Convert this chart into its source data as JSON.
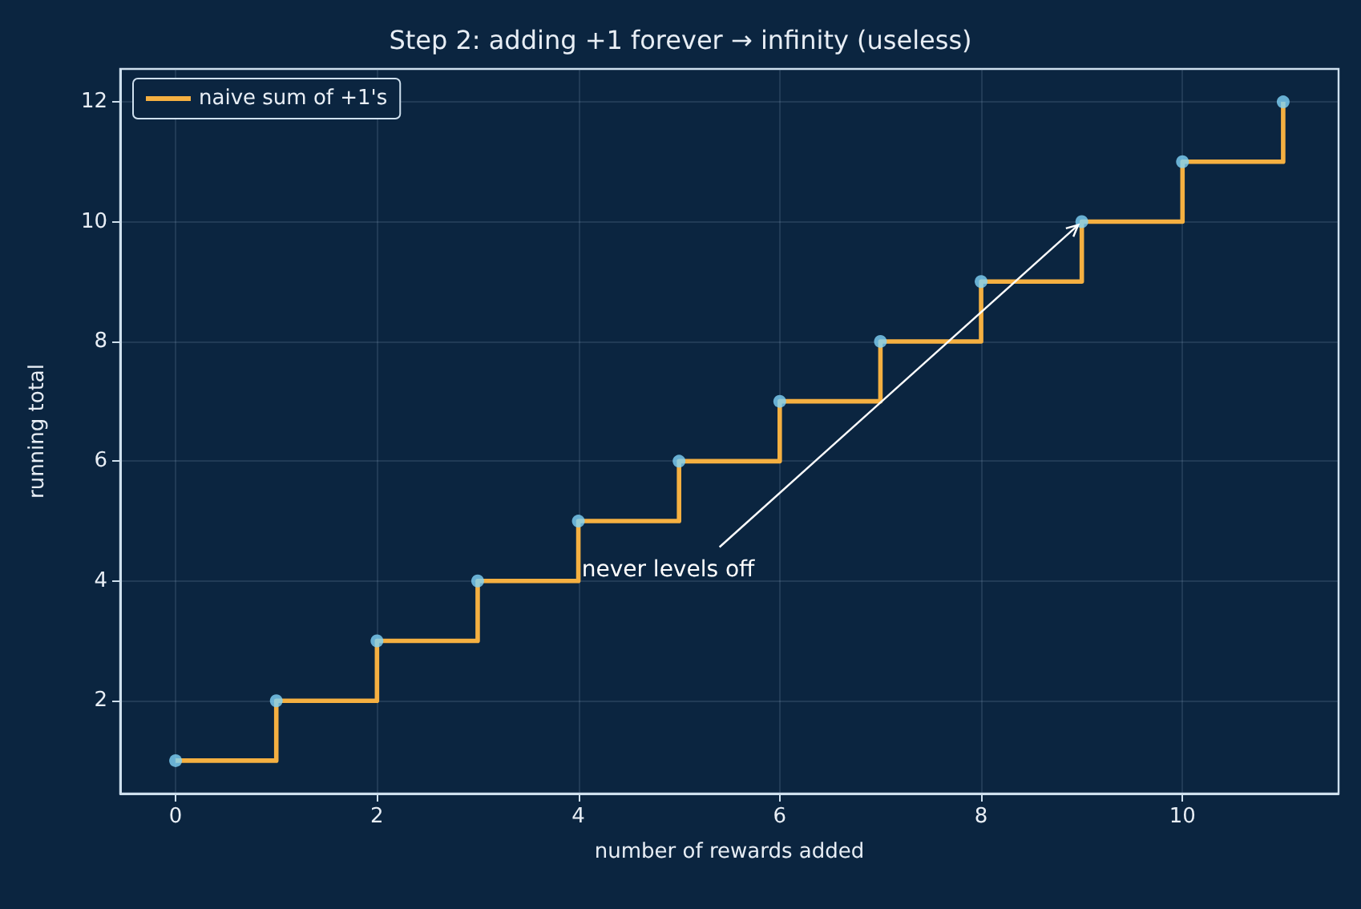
{
  "chart_data": {
    "type": "step",
    "title": "Step 2: adding +1 forever → infinity (useless)",
    "xlabel": "number of rewards added",
    "ylabel": "running total",
    "x": [
      0,
      1,
      2,
      3,
      4,
      5,
      6,
      7,
      8,
      9,
      10,
      11
    ],
    "series": [
      {
        "name": "naive sum of +1's",
        "color": "#f5b041",
        "values": [
          1,
          2,
          3,
          4,
          5,
          6,
          7,
          8,
          9,
          10,
          11,
          12
        ]
      },
      {
        "type": "scatter",
        "marker": "circle",
        "color": "#7fd3f7",
        "values": [
          1,
          2,
          3,
          4,
          5,
          6,
          7,
          8,
          9,
          10,
          11,
          12
        ]
      }
    ],
    "annotations": [
      {
        "text": "never levels off",
        "x": 9,
        "y": 10
      }
    ],
    "xlim": [
      -0.55,
      11.55
    ],
    "xticks": [
      0,
      2,
      4,
      6,
      8,
      10
    ],
    "ylim": [
      0.45,
      12.55
    ],
    "yticks": [
      2,
      4,
      6,
      8,
      10,
      12
    ],
    "grid": true,
    "legend": "top left",
    "line_style": "solid"
  }
}
